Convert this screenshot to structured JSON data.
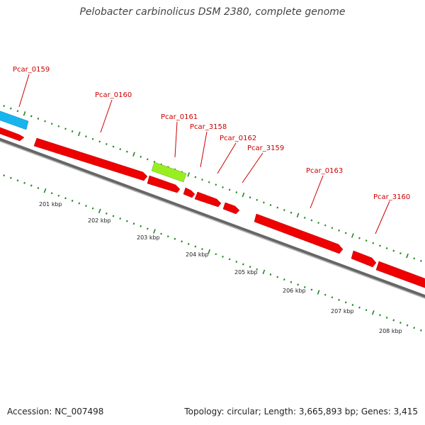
{
  "title": "Pelobacter carbinolicus DSM 2380, complete genome",
  "footer": {
    "accession": "Accession: NC_007498",
    "summary": "Topology: circular; Length: 3,665,893 bp; Genes: 3,415"
  },
  "colors": {
    "cds": "#ee0000",
    "rna_cyan": "#18b4ee",
    "rna_green": "#99ee22",
    "label": "#cc0000",
    "backbone": "#666666",
    "tick": "#228822",
    "tick_label": "#222222"
  },
  "scale_labels": [
    "201 kbp",
    "202 kbp",
    "203 kbp",
    "204 kbp",
    "205 kbp",
    "206 kbp",
    "207 kbp",
    "208 kbp"
  ],
  "gene_labels": [
    "Pcar_0159",
    "Pcar_0160",
    "Pcar_0161",
    "Pcar_3158",
    "Pcar_0162",
    "Pcar_3159",
    "Pcar_0163",
    "Pcar_3160"
  ],
  "features": [
    {
      "type": "CDS",
      "strand": "+",
      "color": "cds"
    },
    {
      "type": "CDS",
      "strand": "+",
      "color": "cds",
      "label": "Pcar_0160"
    },
    {
      "type": "CDS",
      "strand": "+",
      "color": "cds"
    },
    {
      "type": "CDS",
      "strand": "+",
      "color": "cds"
    },
    {
      "type": "CDS",
      "strand": "+",
      "color": "cds"
    },
    {
      "type": "CDS",
      "strand": "+",
      "color": "cds"
    },
    {
      "type": "CDS",
      "strand": "+",
      "color": "cds",
      "label": "Pcar_0163"
    },
    {
      "type": "CDS",
      "strand": "+",
      "color": "cds"
    },
    {
      "type": "CDS",
      "strand": "+",
      "color": "cds"
    },
    {
      "type": "other",
      "strand": "+",
      "color": "rna_cyan",
      "label": "Pcar_0159"
    },
    {
      "type": "other",
      "strand": "+",
      "color": "rna_green",
      "label": "Pcar_0161"
    }
  ]
}
